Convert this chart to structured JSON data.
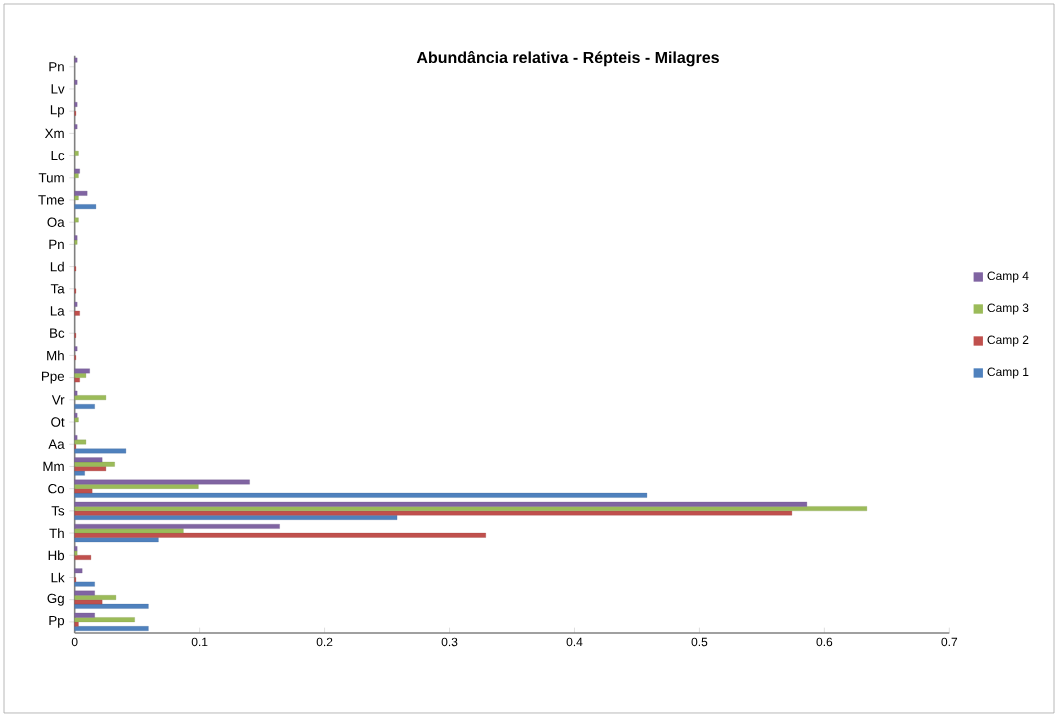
{
  "chart_data": {
    "type": "bar",
    "orientation": "horizontal",
    "title": "Abundância relativa - Répteis - Milagres",
    "categories": [
      "Pn",
      "Lv",
      "Lp",
      "Xm",
      "Lc",
      "Tum",
      "Tme",
      "Oa",
      "Pn",
      "Ld",
      "Ta",
      "La",
      "Bc",
      "Mh",
      "Ppe",
      "Vr",
      "Ot",
      "Aa",
      "Mm",
      "Co",
      "Ts",
      "Th",
      "Hb",
      "Lk",
      "Gg",
      "Pp"
    ],
    "series": [
      {
        "name": "Camp 1",
        "color": "#4f81bd",
        "values": [
          null,
          null,
          null,
          null,
          null,
          null,
          0.017,
          null,
          null,
          null,
          null,
          null,
          null,
          null,
          null,
          0.016,
          null,
          0.041,
          0.008,
          0.458,
          0.258,
          0.067,
          null,
          0.016,
          0.059,
          0.059
        ]
      },
      {
        "name": "Camp 2",
        "color": "#c0504d",
        "values": [
          null,
          null,
          0.001,
          null,
          null,
          null,
          null,
          null,
          null,
          0.001,
          0.001,
          0.004,
          0.001,
          0.001,
          0.004,
          null,
          null,
          0.001,
          0.025,
          0.014,
          0.574,
          0.329,
          0.013,
          0.001,
          0.022,
          0.003
        ]
      },
      {
        "name": "Camp 3",
        "color": "#9bbb59",
        "values": [
          null,
          null,
          null,
          null,
          0.003,
          0.003,
          0.003,
          0.003,
          0.002,
          null,
          null,
          null,
          null,
          null,
          0.009,
          0.025,
          0.003,
          0.009,
          0.032,
          0.099,
          0.634,
          0.087,
          0.002,
          null,
          0.033,
          0.048
        ]
      },
      {
        "name": "Camp 4",
        "color": "#8064a2",
        "values": [
          0.002,
          0.002,
          0.002,
          0.002,
          null,
          0.004,
          0.01,
          null,
          0.002,
          null,
          null,
          0.002,
          null,
          0.002,
          0.012,
          0.002,
          0.002,
          0.002,
          0.022,
          0.14,
          0.586,
          0.164,
          0.002,
          0.006,
          0.016,
          0.016
        ]
      }
    ],
    "xlim": [
      0,
      0.7
    ],
    "xticks": [
      0,
      0.1,
      0.2,
      0.3,
      0.4,
      0.5,
      0.6,
      0.7
    ],
    "legend": "right"
  }
}
